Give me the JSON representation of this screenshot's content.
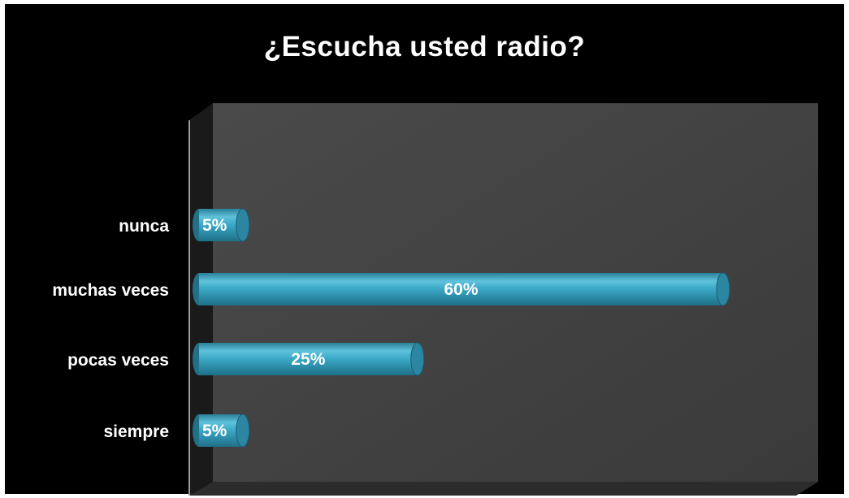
{
  "chart_data": {
    "type": "bar",
    "orientation": "horizontal",
    "title": "¿Escucha usted radio?",
    "categories": [
      "nunca",
      "muchas veces",
      "pocas veces",
      "siempre"
    ],
    "values": [
      5,
      60,
      25,
      5
    ],
    "value_labels": [
      "5%",
      "60%",
      "25%",
      "5%"
    ],
    "xlim": [
      0,
      70
    ],
    "xlabel": "",
    "ylabel": "",
    "grid": false,
    "legend": "none",
    "style": "3d-cylinder"
  },
  "colors": {
    "background": "#000000",
    "plot_wall": "#404040",
    "bar_fill": "#3aa1bd",
    "text": "#ffffff"
  }
}
